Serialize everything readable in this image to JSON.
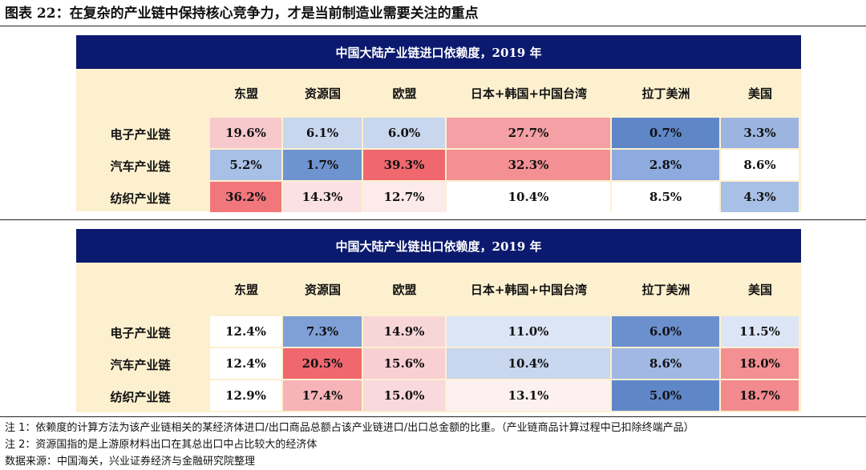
{
  "figure_title": "图表 22：在复杂的产业链中保持核心竞争力，才是当前制造业需要关注的重点",
  "import_table": {
    "title": "中国大陆产业链进口依赖度，2019 年",
    "columns": [
      "东盟",
      "资源国",
      "欧盟",
      "日本+韩国+中国台湾",
      "拉丁美洲",
      "美国"
    ],
    "rows": [
      {
        "label": "电子产业链",
        "values": [
          "19.6%",
          "6.1%",
          "6.0%",
          "27.7%",
          "0.7%",
          "3.3%"
        ],
        "colors": [
          "#f7c9cc",
          "#c8d6ee",
          "#c8d6ee",
          "#f4a0a4",
          "#5f87c8",
          "#9cb5e0"
        ]
      },
      {
        "label": "汽车产业链",
        "values": [
          "5.2%",
          "1.7%",
          "39.3%",
          "32.3%",
          "2.8%",
          "8.6%"
        ],
        "colors": [
          "#a8c0e6",
          "#6e94d0",
          "#f0676e",
          "#f48f93",
          "#8eaade",
          "#ffffff"
        ]
      },
      {
        "label": "纺织产业链",
        "values": [
          "36.2%",
          "14.3%",
          "12.7%",
          "10.4%",
          "8.5%",
          "4.3%"
        ],
        "colors": [
          "#f2777c",
          "#fbe1e3",
          "#fdeaeb",
          "#ffffff",
          "#ffffff",
          "#a8c0e6"
        ]
      }
    ]
  },
  "export_table": {
    "title": "中国大陆产业链出口依赖度，2019 年",
    "columns": [
      "东盟",
      "资源国",
      "欧盟",
      "日本+韩国+中国台湾",
      "拉丁美洲",
      "美国"
    ],
    "rows": [
      {
        "label": "电子产业链",
        "values": [
          "12.4%",
          "7.3%",
          "14.9%",
          "11.0%",
          "6.0%",
          "11.5%"
        ],
        "colors": [
          "#ffffff",
          "#7ea0d6",
          "#f8d6d8",
          "#dce5f5",
          "#6c90ce",
          "#dce5f5"
        ]
      },
      {
        "label": "汽车产业链",
        "values": [
          "12.4%",
          "20.5%",
          "15.6%",
          "10.4%",
          "8.6%",
          "18.0%"
        ],
        "colors": [
          "#ffffff",
          "#f0676e",
          "#f8cfd2",
          "#c8d6ee",
          "#a0b8e3",
          "#f48f93"
        ]
      },
      {
        "label": "纺织产业链",
        "values": [
          "12.9%",
          "17.4%",
          "15.0%",
          "13.1%",
          "5.0%",
          "18.7%"
        ],
        "colors": [
          "#ffffff",
          "#f6b4b8",
          "#f9d9dc",
          "#fdf0f1",
          "#5f87c8",
          "#f38a8f"
        ]
      }
    ]
  },
  "notes": [
    "注 1：依赖度的计算方法为该产业链相关的某经济体进口/出口商品总额占该产业链进口/出口总金额的比重。（产业链商品计算过程中已扣除终端产品）",
    "注 2：资源国指的是上游原材料出口在其总出口中占比较大的经济体",
    "数据来源：中国海关，兴业证券经济与金融研究院整理"
  ]
}
